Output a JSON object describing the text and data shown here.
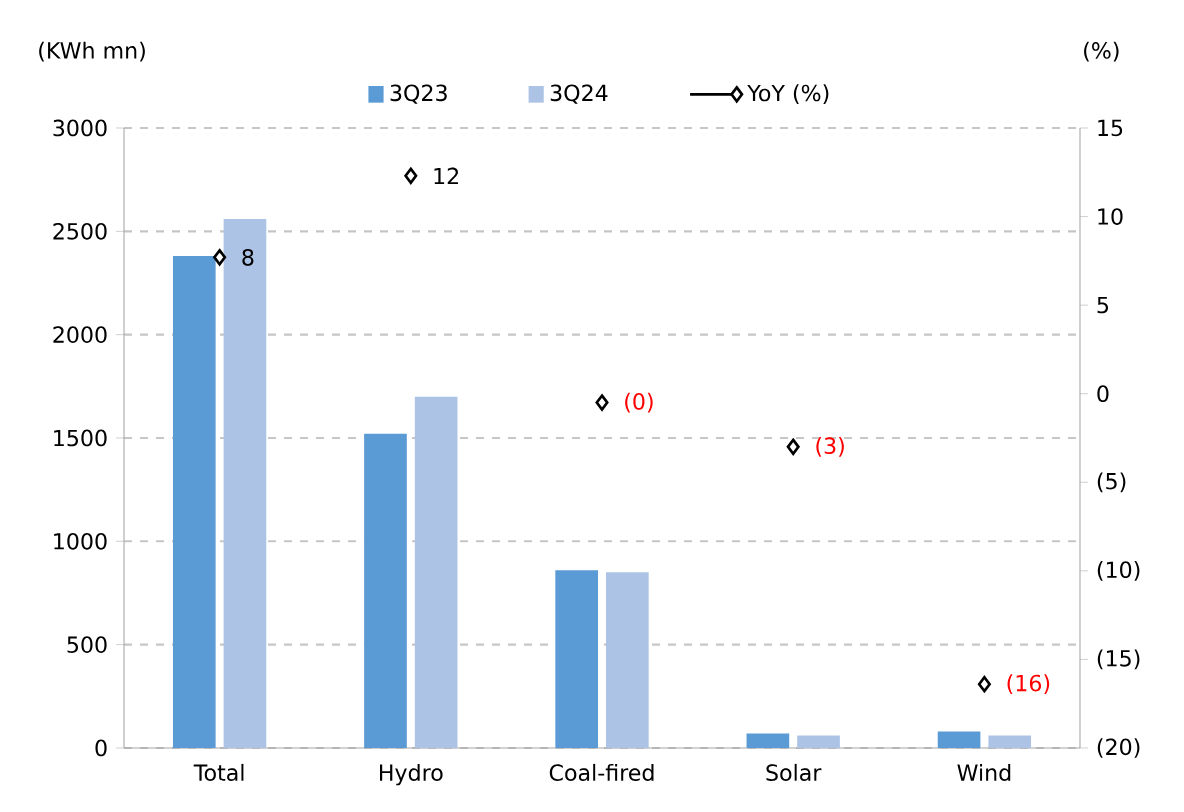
{
  "chart_data": {
    "type": "bar",
    "categories": [
      "Total",
      "Hydro",
      "Coal-fired",
      "Solar",
      "Wind"
    ],
    "series": [
      {
        "name": "3Q23",
        "color": "#5b9bd5",
        "values": [
          2380,
          1520,
          860,
          70,
          80
        ]
      },
      {
        "name": "3Q24",
        "color": "#adc3e6",
        "values": [
          2560,
          1700,
          850,
          60,
          60
        ]
      },
      {
        "name": "YoY (%)",
        "type": "scatter",
        "axis": "y2",
        "color": "#000000",
        "marker": "diamond",
        "values": [
          7.7,
          12.3,
          -0.5,
          -3.0,
          -16.4
        ],
        "value_labels": [
          "8",
          "12",
          "(0)",
          "(3)",
          "(16)"
        ]
      }
    ],
    "ylabel": "(KWh mn)",
    "y2label": "(%)",
    "ylim": [
      0,
      3000
    ],
    "yticks": [
      0,
      500,
      1000,
      1500,
      2000,
      2500,
      3000
    ],
    "y2lim": [
      -20,
      15
    ],
    "y2ticks": [
      {
        "value": -20,
        "label": "(20)"
      },
      {
        "value": -15,
        "label": "(15)"
      },
      {
        "value": -10,
        "label": "(10)"
      },
      {
        "value": -5,
        "label": "(5)"
      },
      0,
      5,
      10,
      15
    ],
    "grid": "y",
    "legend": "top"
  }
}
